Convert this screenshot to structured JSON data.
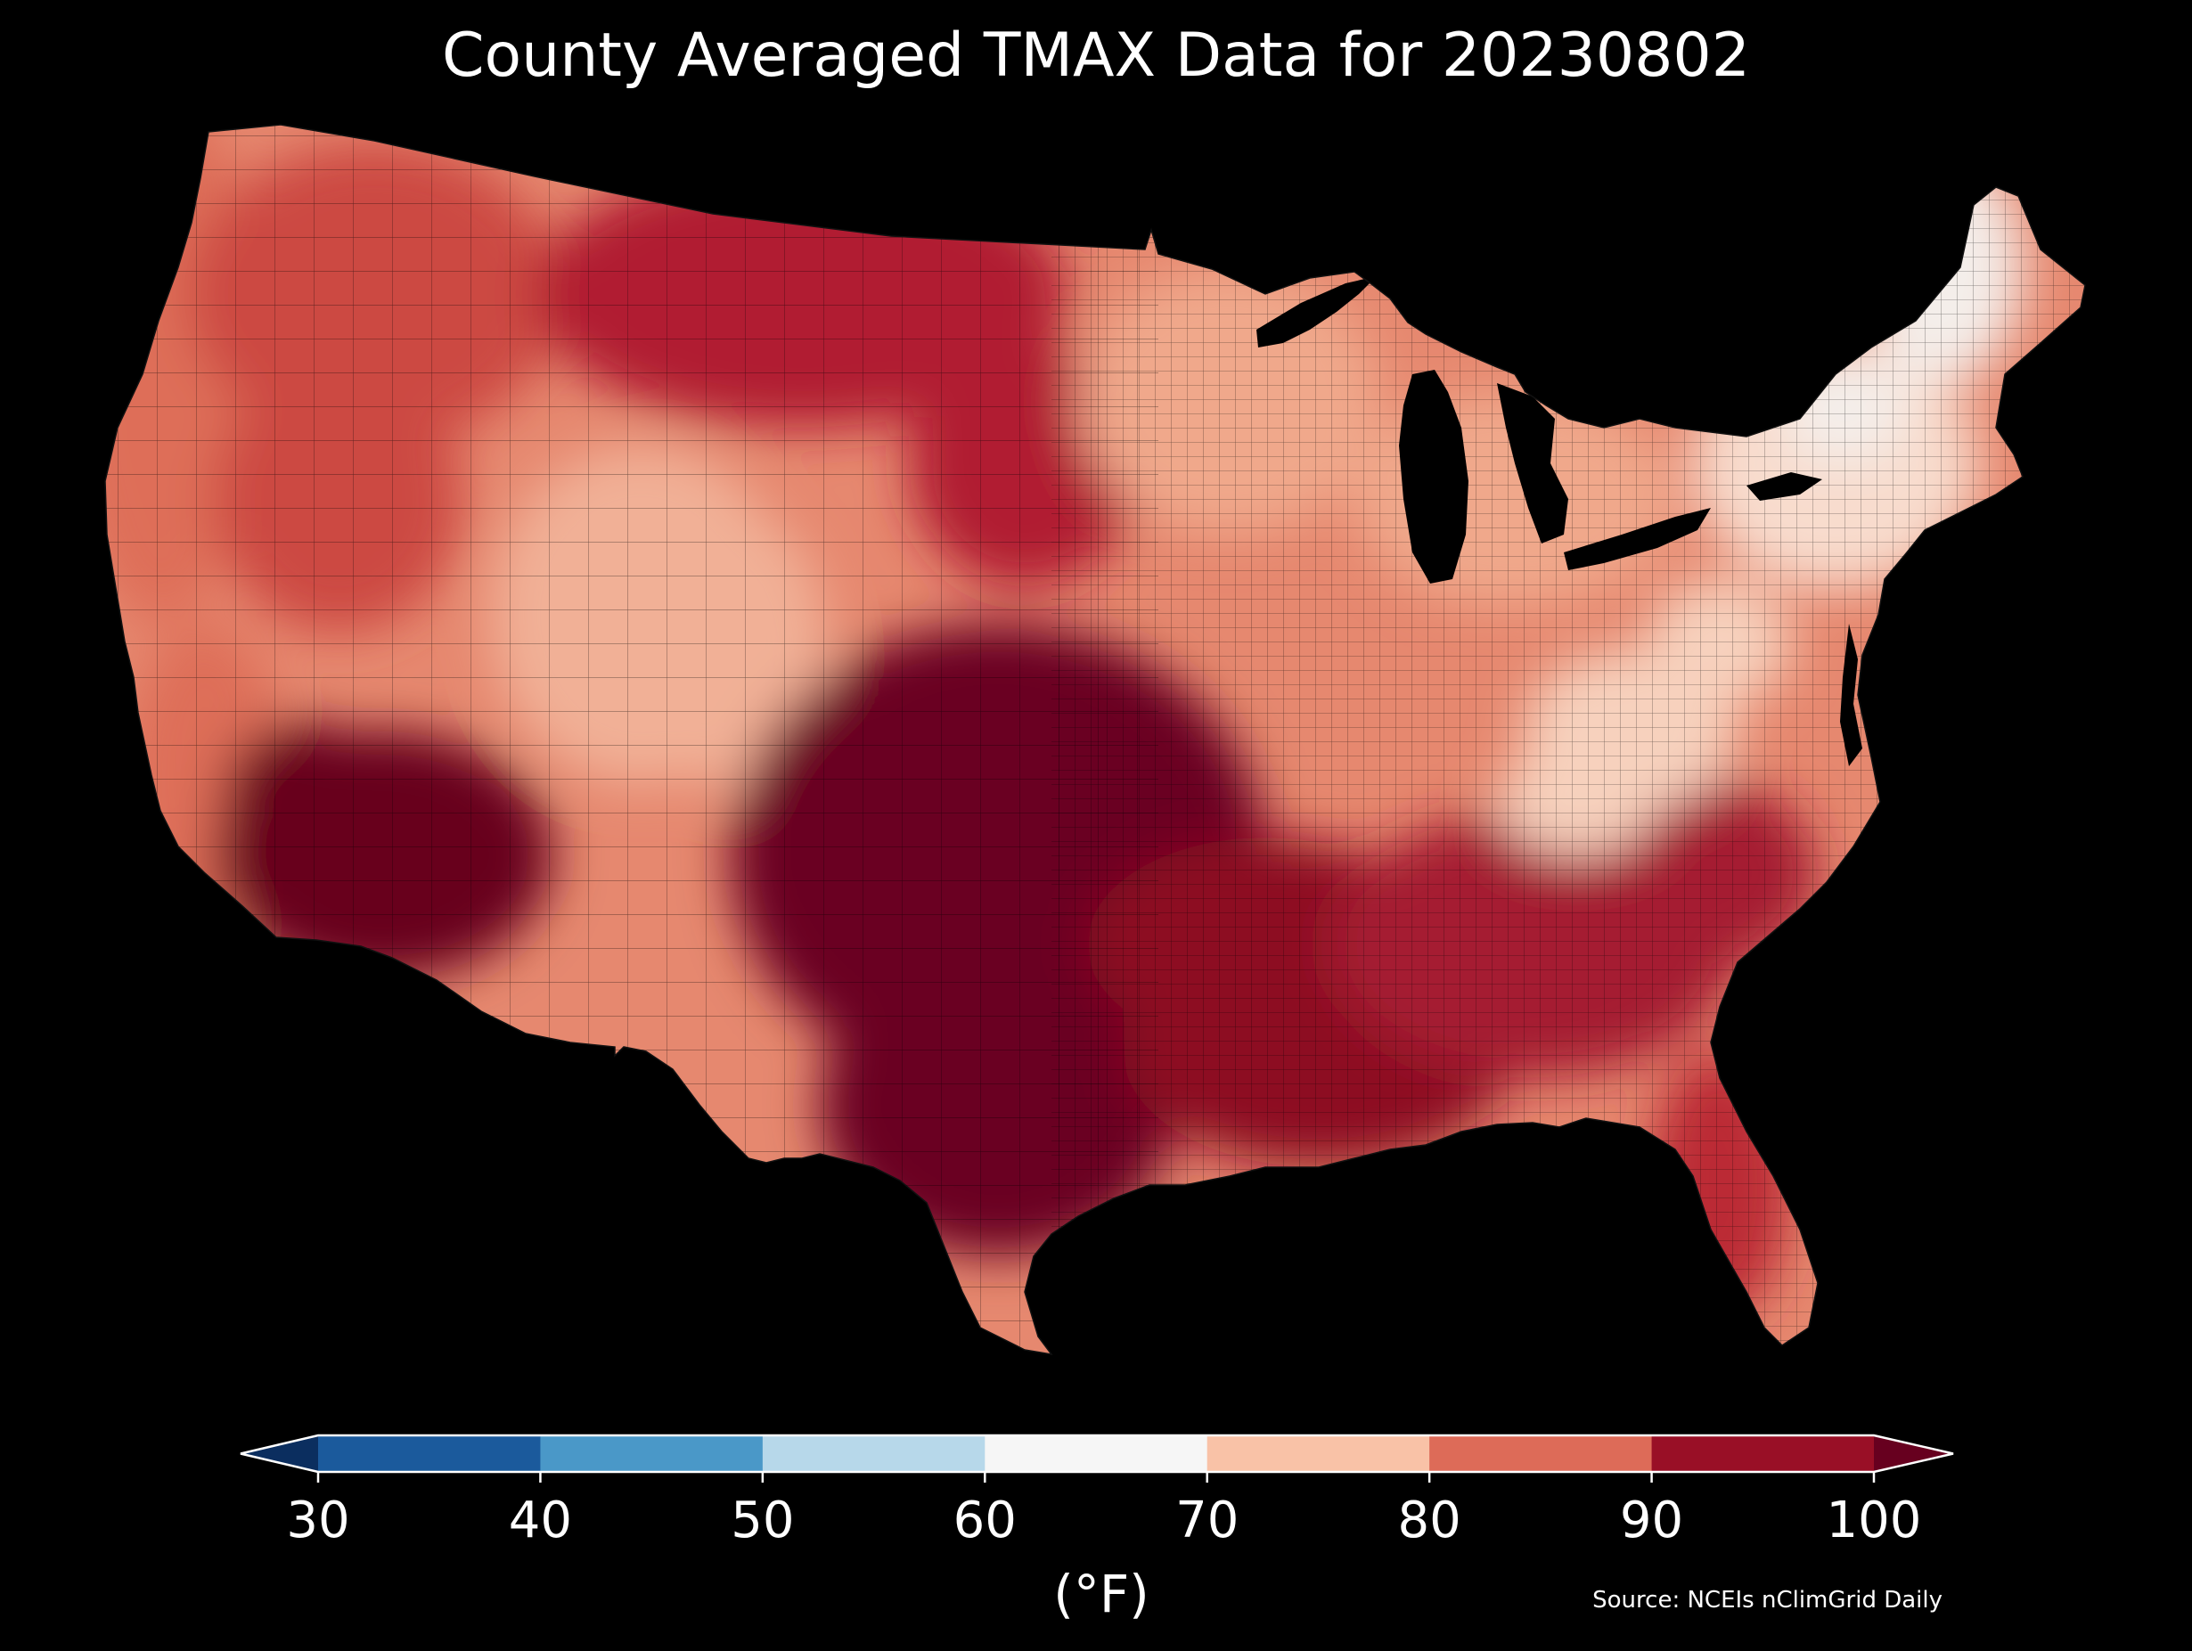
{
  "title": "County Averaged TMAX Data for 20230802",
  "colorbar": {
    "unit_label": "(°F)",
    "ticks": [
      "30",
      "40",
      "50",
      "60",
      "70",
      "80",
      "90",
      "100"
    ],
    "bins": [
      {
        "from": 30,
        "to": 40,
        "color": "#1b5a9c"
      },
      {
        "from": 40,
        "to": 50,
        "color": "#4a98c8"
      },
      {
        "from": 50,
        "to": 60,
        "color": "#b7d8ea"
      },
      {
        "from": 60,
        "to": 70,
        "color": "#f6f6f6"
      },
      {
        "from": 70,
        "to": 80,
        "color": "#f9c2a7"
      },
      {
        "from": 80,
        "to": 90,
        "color": "#dd6b58"
      },
      {
        "from": 90,
        "to": 100,
        "color": "#990f26"
      }
    ],
    "under_color": "#0b2e5f",
    "over_color": "#67001f",
    "extend": "both"
  },
  "source": "Source: NCEIs nClimGrid Daily",
  "map": {
    "projection": "conterminous United States, county choropleth",
    "background": "#000000",
    "county_edge_color": "#000000",
    "regions": [
      {
        "name": "desert-southwest",
        "tmax_f": 104,
        "color": "#67001f"
      },
      {
        "name": "southern-plains-texas",
        "tmax_f": 103,
        "color": "#6a0320"
      },
      {
        "name": "gulf-coast",
        "tmax_f": 97,
        "color": "#8d0a24"
      },
      {
        "name": "southeast",
        "tmax_f": 93,
        "color": "#a51c30"
      },
      {
        "name": "florida",
        "tmax_f": 91,
        "color": "#bb2a34"
      },
      {
        "name": "northern-plains",
        "tmax_f": 91,
        "color": "#b11d31"
      },
      {
        "name": "northwest-interior",
        "tmax_f": 86,
        "color": "#cc4a42"
      },
      {
        "name": "pacific-coast",
        "tmax_f": 80,
        "color": "#de6e59"
      },
      {
        "name": "central-rockies",
        "tmax_f": 73,
        "color": "#f1b096"
      },
      {
        "name": "midwest-ohio-valley",
        "tmax_f": 83,
        "color": "#e6886f"
      },
      {
        "name": "appalachians",
        "tmax_f": 72,
        "color": "#f7d1bd"
      },
      {
        "name": "great-lakes-upper-midwest",
        "tmax_f": 78,
        "color": "#f0a88b"
      },
      {
        "name": "northeast",
        "tmax_f": 70,
        "color": "#f8dccd"
      },
      {
        "name": "maine-high-peaks",
        "tmax_f": 63,
        "color": "#f4eeea"
      }
    ]
  }
}
